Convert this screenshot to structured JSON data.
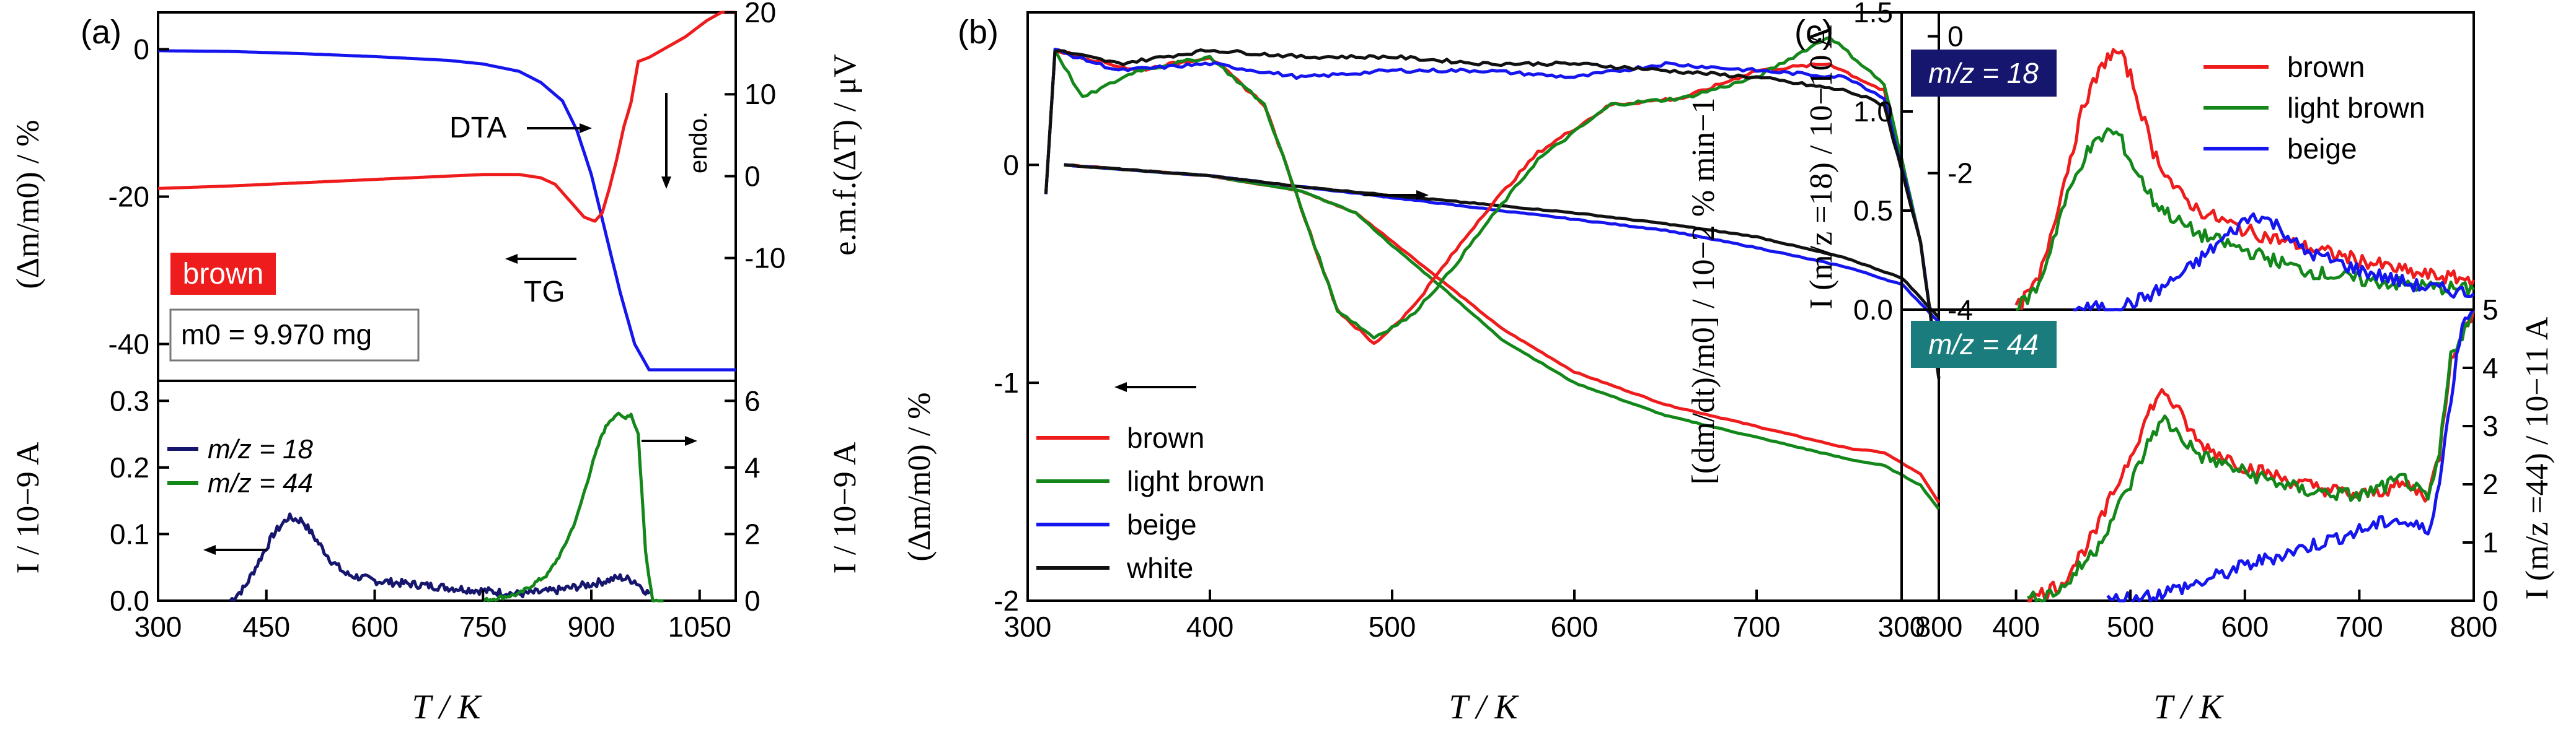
{
  "figure": {
    "panel_labels": [
      "(a)",
      "(b)",
      "(c)"
    ]
  },
  "colors": {
    "red": "#ee1c1c",
    "green": "#13871a",
    "blue": "#1515ee",
    "navy": "#16166e",
    "black": "#111111",
    "teal": "#1a7c7c"
  },
  "panel_a": {
    "xticks": [
      "300",
      "450",
      "600",
      "750",
      "900",
      "1050"
    ],
    "xlabel": "T / K",
    "top_left_ticks": [
      "0",
      "-20",
      "-40"
    ],
    "top_right_ticks": [
      "20",
      "10",
      "0",
      "-10"
    ],
    "top_left_label": "(Δm/m0) / %",
    "top_right_label": "e.m.f.(ΔT) / μV",
    "bot_left_ticks": [
      "0.0",
      "0.1",
      "0.2",
      "0.3"
    ],
    "bot_right_ticks": [
      "0",
      "2",
      "4",
      "6"
    ],
    "bot_left_label": "I / 10−9 A",
    "bot_right_label": "I / 10−9 A",
    "sample_label": "brown",
    "mass_label": "m0 = 9.970 mg",
    "dta_label": "DTA",
    "tg_label": "TG",
    "endo_label": "endo.",
    "legend": [
      "m/z = 18",
      "m/z = 44"
    ]
  },
  "panel_b": {
    "xticks": [
      "300",
      "400",
      "500",
      "600",
      "700",
      "800"
    ],
    "xlabel": "T / K",
    "left_ticks": [
      "0",
      "-1",
      "-2"
    ],
    "right_ticks": [
      "0",
      "-2",
      "-4"
    ],
    "left_label": "(Δm/m0) / %",
    "right_label": "[(dm/dt)/m0] / 10−2 % min−1",
    "legend": [
      "brown",
      "light brown",
      "beige",
      "white"
    ]
  },
  "panel_c": {
    "xticks": [
      "300",
      "400",
      "500",
      "600",
      "700",
      "800"
    ],
    "xlabel": "T / K",
    "top_ticks": [
      "0.0",
      "0.5",
      "1.0",
      "1.5"
    ],
    "bot_ticks": [
      "0",
      "1",
      "2",
      "3",
      "4",
      "5"
    ],
    "top_label": "I (m/z =18) / 10−10 A",
    "bot_label": "I (m/z =44) / 10−11 A",
    "badge_top": "m/z = 18",
    "badge_bot": "m/z = 44",
    "legend": [
      "brown",
      "light brown",
      "beige"
    ]
  },
  "chart_data": [
    {
      "panel": "(a) top",
      "type": "line",
      "xlim": [
        300,
        1100
      ],
      "ylim": [
        -45,
        5
      ],
      "y2lim": [
        -25,
        20
      ],
      "series": [
        {
          "name": "TG",
          "axis": "left",
          "x": [
            300,
            400,
            500,
            600,
            700,
            750,
            800,
            830,
            860,
            880,
            900,
            920,
            940,
            960,
            980,
            1000,
            1050,
            1100
          ],
          "y": [
            -0.2,
            -0.3,
            -0.6,
            -1.0,
            -1.5,
            -2.0,
            -3.0,
            -4.5,
            -7.0,
            -11,
            -17,
            -25,
            -33,
            -40,
            -43.5,
            -43.5,
            -43.5,
            -43.5
          ]
        },
        {
          "name": "DTA",
          "axis": "right",
          "x": [
            300,
            400,
            500,
            600,
            700,
            750,
            800,
            830,
            850,
            870,
            890,
            905,
            915,
            925,
            935,
            945,
            955,
            965,
            980,
            1000,
            1030,
            1060,
            1080,
            1100
          ],
          "y": [
            -1.5,
            -1.2,
            -0.8,
            -0.4,
            0,
            0.2,
            0.2,
            -0.2,
            -1,
            -3,
            -5,
            -5.5,
            -4.5,
            -1.5,
            2,
            6,
            9,
            14,
            14.5,
            15.5,
            17,
            19,
            20,
            20
          ]
        }
      ]
    },
    {
      "panel": "(a) bottom",
      "type": "line",
      "xlim": [
        300,
        1100
      ],
      "ylim": [
        0,
        0.33
      ],
      "y2lim": [
        0,
        6.6
      ],
      "series": [
        {
          "name": "m/z = 18",
          "axis": "left",
          "x": [
            400,
            420,
            440,
            460,
            480,
            500,
            520,
            540,
            560,
            600,
            650,
            700,
            750,
            800,
            850,
            900,
            920,
            940,
            960,
            970,
            980
          ],
          "y": [
            0,
            0.02,
            0.06,
            0.1,
            0.125,
            0.12,
            0.09,
            0.06,
            0.04,
            0.03,
            0.025,
            0.02,
            0.015,
            0.01,
            0.015,
            0.025,
            0.03,
            0.035,
            0.03,
            0.02,
            0.01
          ]
        },
        {
          "name": "m/z = 44",
          "axis": "right",
          "x": [
            750,
            800,
            840,
            860,
            880,
            900,
            915,
            925,
            935,
            945,
            955,
            965,
            975,
            985,
            1000
          ],
          "y": [
            0,
            0.2,
            0.8,
            1.5,
            2.5,
            4,
            5,
            5.4,
            5.6,
            5.5,
            5.6,
            5,
            1.5,
            0,
            0
          ]
        }
      ]
    },
    {
      "panel": "(b) bottom",
      "type": "line",
      "xlim": [
        300,
        800
      ],
      "ylim": [
        -2,
        0
      ],
      "series": [
        {
          "name": "brown",
          "x": [
            320,
            400,
            450,
            480,
            500,
            530,
            560,
            600,
            650,
            700,
            750,
            770,
            790,
            800
          ],
          "y": [
            0,
            -0.05,
            -0.12,
            -0.22,
            -0.35,
            -0.55,
            -0.75,
            -0.95,
            -1.1,
            -1.2,
            -1.3,
            -1.32,
            -1.42,
            -1.55
          ]
        },
        {
          "name": "light brown",
          "x": [
            320,
            400,
            450,
            480,
            500,
            530,
            560,
            600,
            650,
            700,
            750,
            770,
            790,
            800
          ],
          "y": [
            0,
            -0.05,
            -0.12,
            -0.22,
            -0.37,
            -0.58,
            -0.8,
            -1.0,
            -1.15,
            -1.25,
            -1.35,
            -1.38,
            -1.47,
            -1.58
          ]
        },
        {
          "name": "beige",
          "x": [
            320,
            400,
            450,
            500,
            550,
            600,
            650,
            700,
            750,
            780,
            800
          ],
          "y": [
            0,
            -0.05,
            -0.1,
            -0.15,
            -0.2,
            -0.25,
            -0.3,
            -0.38,
            -0.47,
            -0.55,
            -0.72
          ]
        },
        {
          "name": "white",
          "x": [
            320,
            400,
            450,
            500,
            550,
            600,
            650,
            700,
            750,
            780,
            800
          ],
          "y": [
            0,
            -0.05,
            -0.1,
            -0.14,
            -0.18,
            -0.22,
            -0.27,
            -0.33,
            -0.43,
            -0.52,
            -0.7
          ]
        }
      ]
    },
    {
      "panel": "(b) top",
      "type": "line",
      "xlim": [
        300,
        800
      ],
      "ylim": [
        -5,
        0
      ],
      "series": [
        {
          "name": "brown",
          "x": [
            310,
            315,
            330,
            360,
            400,
            430,
            450,
            470,
            490,
            510,
            530,
            550,
            580,
            620,
            660,
            700,
            740,
            770,
            790,
            800
          ],
          "y": [
            -2.3,
            -0.2,
            -0.3,
            -0.5,
            -0.3,
            -1.0,
            -2.5,
            -4.0,
            -4.5,
            -4.0,
            -3.3,
            -2.6,
            -1.7,
            -1.0,
            -0.9,
            -0.5,
            -0.4,
            -0.8,
            -3,
            -5
          ]
        },
        {
          "name": "light brown",
          "x": [
            310,
            315,
            330,
            360,
            400,
            430,
            450,
            470,
            490,
            510,
            530,
            550,
            580,
            620,
            660,
            700,
            740,
            770,
            790,
            800
          ],
          "y": [
            -2.3,
            -0.2,
            -0.9,
            -0.5,
            -0.3,
            -1.0,
            -2.5,
            -4.0,
            -4.4,
            -4.1,
            -3.5,
            -2.8,
            -1.8,
            -1.0,
            -0.9,
            -0.6,
            0,
            -0.7,
            -3,
            -5
          ]
        },
        {
          "name": "beige",
          "x": [
            310,
            315,
            350,
            400,
            450,
            500,
            550,
            600,
            650,
            700,
            750,
            770,
            790,
            800
          ],
          "y": [
            -2.3,
            -0.2,
            -0.5,
            -0.4,
            -0.6,
            -0.5,
            -0.5,
            -0.6,
            -0.4,
            -0.5,
            -0.6,
            -0.9,
            -3,
            -5
          ]
        },
        {
          "name": "white",
          "x": [
            310,
            315,
            350,
            400,
            450,
            500,
            550,
            600,
            650,
            700,
            750,
            770,
            790,
            800
          ],
          "y": [
            -2.3,
            -0.2,
            -0.4,
            -0.2,
            -0.3,
            -0.3,
            -0.4,
            -0.4,
            -0.5,
            -0.6,
            -0.8,
            -1.0,
            -3,
            -5
          ]
        }
      ]
    },
    {
      "panel": "(c) top",
      "type": "line",
      "xlim": [
        300,
        800
      ],
      "ylim": [
        0,
        1.5
      ],
      "series": [
        {
          "name": "brown",
          "x": [
            400,
            420,
            440,
            460,
            480,
            490,
            500,
            520,
            540,
            560,
            600,
            650,
            700,
            750,
            800
          ],
          "y": [
            0,
            0.15,
            0.6,
            1.05,
            1.28,
            1.3,
            1.18,
            0.8,
            0.6,
            0.5,
            0.4,
            0.32,
            0.25,
            0.18,
            0.15
          ]
        },
        {
          "name": "light brown",
          "x": [
            400,
            420,
            440,
            460,
            480,
            490,
            500,
            520,
            540,
            560,
            600,
            650,
            700,
            750,
            800
          ],
          "y": [
            0,
            0.12,
            0.5,
            0.78,
            0.9,
            0.88,
            0.75,
            0.55,
            0.45,
            0.38,
            0.3,
            0.2,
            0.15,
            0.12,
            0.1
          ]
        },
        {
          "name": "beige",
          "x": [
            450,
            480,
            500,
            520,
            550,
            580,
            600,
            610,
            630,
            650,
            700,
            750,
            800
          ],
          "y": [
            0,
            0.01,
            0.03,
            0.08,
            0.2,
            0.35,
            0.45,
            0.48,
            0.42,
            0.3,
            0.2,
            0.12,
            0.08
          ]
        }
      ]
    },
    {
      "panel": "(c) bottom",
      "type": "line",
      "xlim": [
        300,
        800
      ],
      "ylim": [
        0,
        5
      ],
      "series": [
        {
          "name": "brown",
          "x": [
            410,
            440,
            470,
            500,
            520,
            530,
            540,
            560,
            600,
            650,
            700,
            740,
            760,
            770,
            780,
            800
          ],
          "y": [
            0,
            0.3,
            1.2,
            2.5,
            3.4,
            3.6,
            3.3,
            2.7,
            2.3,
            2.0,
            1.8,
            2.0,
            1.8,
            2.5,
            4.2,
            5
          ]
        },
        {
          "name": "light brown",
          "x": [
            410,
            440,
            470,
            500,
            520,
            530,
            540,
            560,
            600,
            650,
            700,
            740,
            760,
            770,
            780,
            800
          ],
          "y": [
            0,
            0.2,
            0.9,
            2.0,
            2.9,
            3.1,
            2.9,
            2.5,
            2.2,
            1.9,
            1.8,
            2.1,
            1.7,
            2.5,
            4.2,
            5
          ]
        },
        {
          "name": "beige",
          "x": [
            480,
            520,
            560,
            600,
            650,
            700,
            730,
            760,
            770,
            780,
            790,
            800
          ],
          "y": [
            0,
            0.1,
            0.3,
            0.6,
            0.9,
            1.2,
            1.4,
            1.2,
            2.0,
            3.5,
            4.8,
            5
          ]
        }
      ]
    }
  ]
}
